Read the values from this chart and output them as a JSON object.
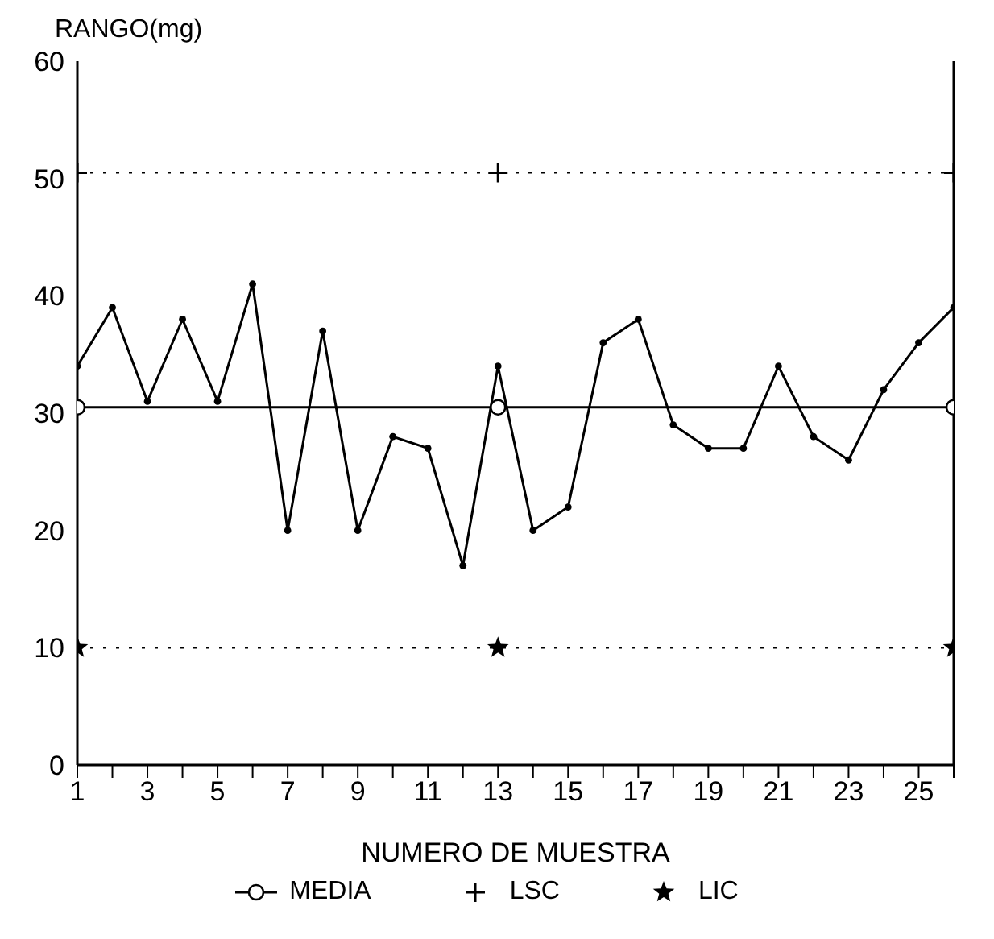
{
  "chart_data": {
    "type": "line",
    "xlabel": "NUMERO DE MUESTRA",
    "ylabel": "RANGO(mg)",
    "x": [
      1,
      2,
      3,
      4,
      5,
      6,
      7,
      8,
      9,
      10,
      11,
      12,
      13,
      14,
      15,
      16,
      17,
      18,
      19,
      20,
      21,
      22,
      23,
      24,
      25,
      26
    ],
    "series": [
      {
        "color": "#000000",
        "marker": "circle",
        "line_style": "solid",
        "values": [
          34,
          39,
          31,
          38,
          31,
          41,
          20,
          37,
          20,
          28,
          27,
          17,
          34,
          20,
          22,
          36,
          38,
          29,
          27,
          27,
          34,
          28,
          26,
          32,
          36,
          39
        ]
      },
      {
        "name": "MEDIA",
        "color": "#000000",
        "marker": "circle",
        "line_style": "solid",
        "x": [
          1,
          13,
          26
        ],
        "values": [
          30.5,
          30.5,
          30.5
        ]
      },
      {
        "name": "LSC",
        "color": "#000000",
        "marker": "cross",
        "line_style": "dotted",
        "x": [
          1,
          13,
          26
        ],
        "values": [
          50.5,
          50.5,
          50.5
        ]
      },
      {
        "name": "LIC",
        "color": "#000000",
        "marker": "star",
        "line_style": "dotted",
        "x": [
          1,
          13,
          26
        ],
        "values": [
          10,
          10,
          10
        ]
      }
    ],
    "xlim": [
      1,
      26
    ],
    "xticks": [
      1,
      {
        "value": 2,
        "label": null
      },
      3,
      {
        "value": 4,
        "label": null
      },
      5,
      {
        "value": 6,
        "label": null
      },
      7,
      {
        "value": 8,
        "label": null
      },
      9,
      {
        "value": 10,
        "label": null
      },
      11,
      {
        "value": 12,
        "label": null
      },
      13,
      {
        "value": 14,
        "label": null
      },
      15,
      {
        "value": 16,
        "label": null
      },
      17,
      {
        "value": 18,
        "label": null
      },
      19,
      {
        "value": 20,
        "label": null
      },
      21,
      {
        "value": 22,
        "label": null
      },
      23,
      {
        "value": 24,
        "label": null
      },
      25,
      {
        "value": 26,
        "label": null
      }
    ],
    "ylim": [
      0,
      60
    ],
    "yticks": [
      0,
      10,
      20,
      30,
      40,
      50,
      60
    ],
    "grid": false,
    "legend": "bottom"
  }
}
